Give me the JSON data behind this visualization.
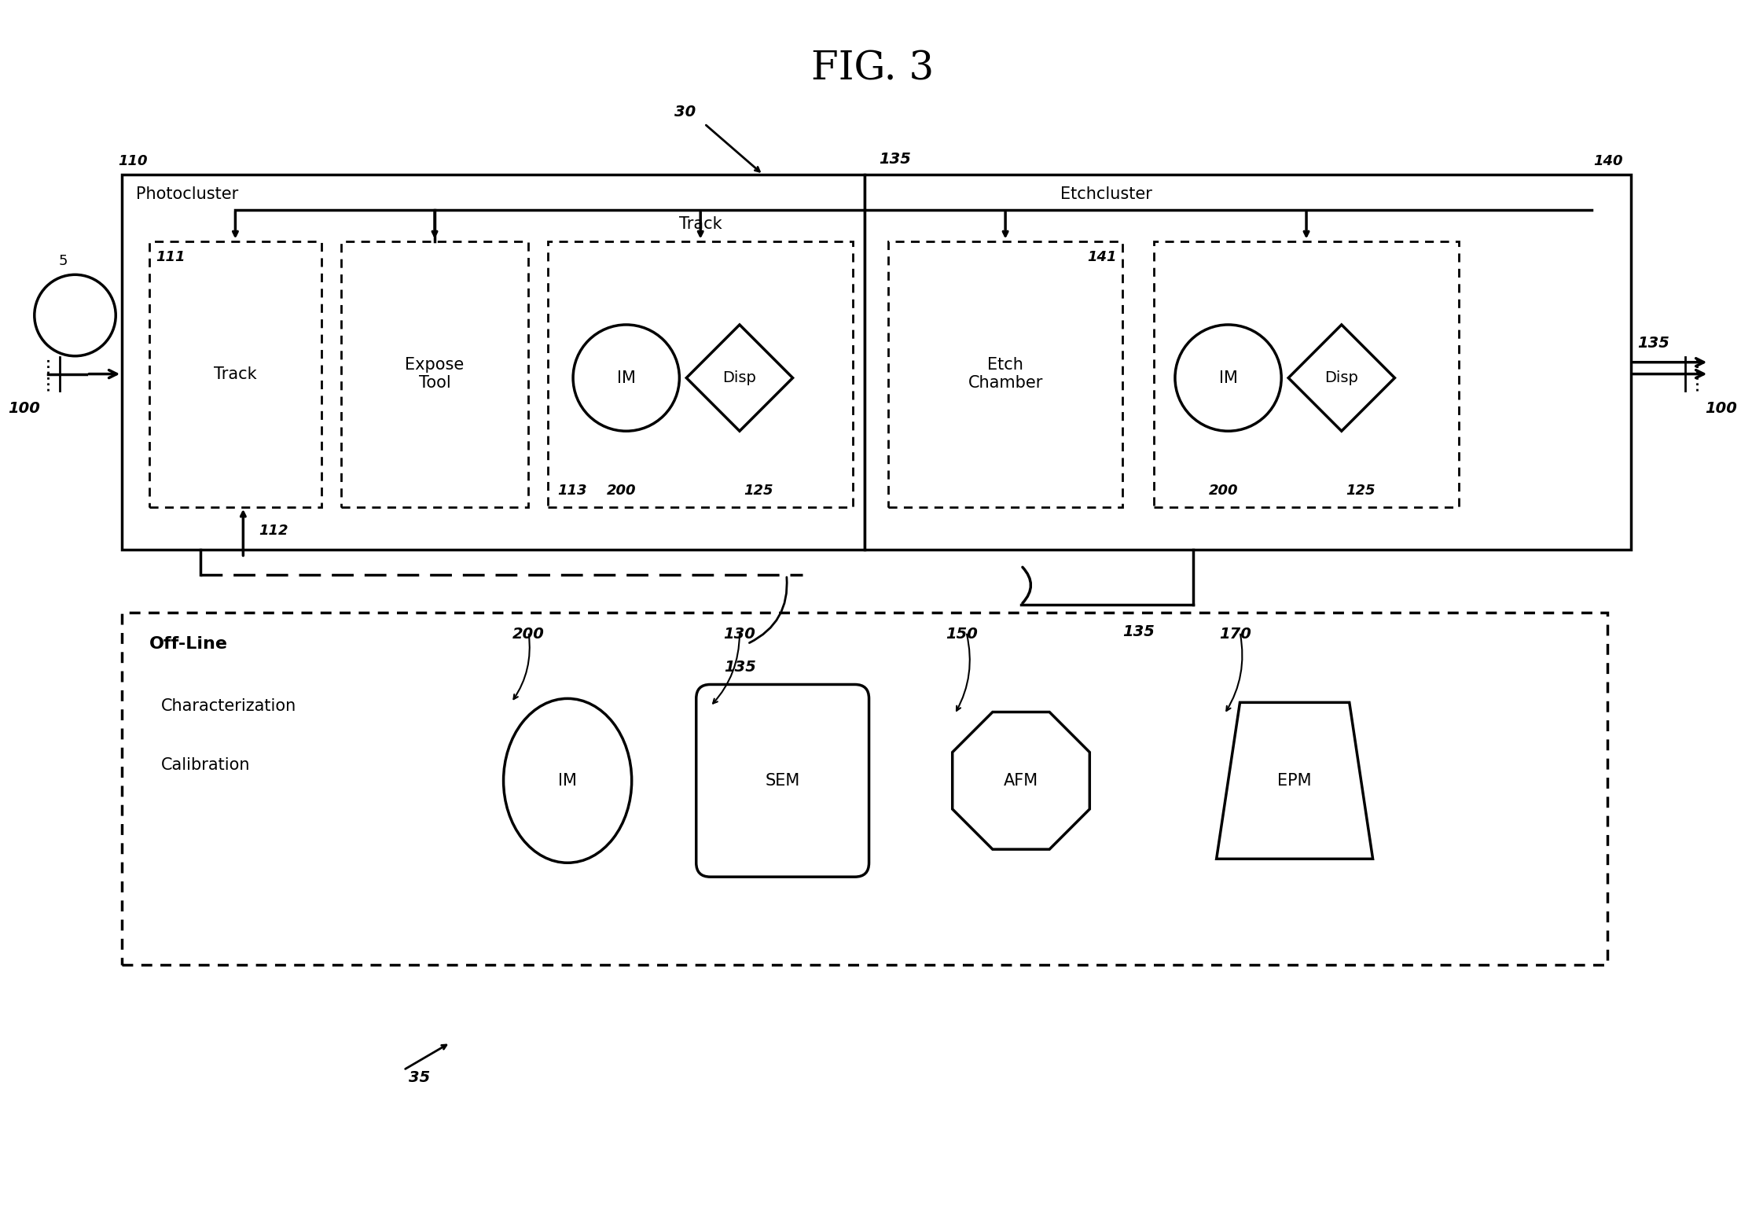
{
  "title": "FIG. 3",
  "title_fontsize": 36,
  "bg_color": "#ffffff",
  "fg_color": "#000000",
  "photocluster_label": "Photocluster",
  "photocluster_num": "110",
  "etchcluster_label": "Etchcluster",
  "etchcluster_num": "140",
  "track_label": "Track",
  "expose_label": "Expose\nTool",
  "etch_chamber_label": "Etch\nChamber",
  "im_label": "IM",
  "disp_label": "Disp",
  "offline_label": "Off-Line",
  "sem_label": "SEM",
  "afm_label": "AFM",
  "epm_label": "EPM",
  "num_200a": "200",
  "num_200b": "200",
  "num_200c": "200",
  "num_125a": "125",
  "num_125b": "125",
  "num_130": "130",
  "num_150": "150",
  "num_170": "170",
  "num_111": "111",
  "num_112": "112",
  "num_113": "113",
  "num_141": "141",
  "num_135a": "135",
  "num_135b": "135",
  "num_135c": "135",
  "num_135d": "135",
  "num_100a": "100",
  "num_100b": "100",
  "num_5": "5",
  "num_30": "30",
  "num_35": "35",
  "track_label2": "Track",
  "char_label1": "Characterization",
  "char_label2": "Calibration"
}
